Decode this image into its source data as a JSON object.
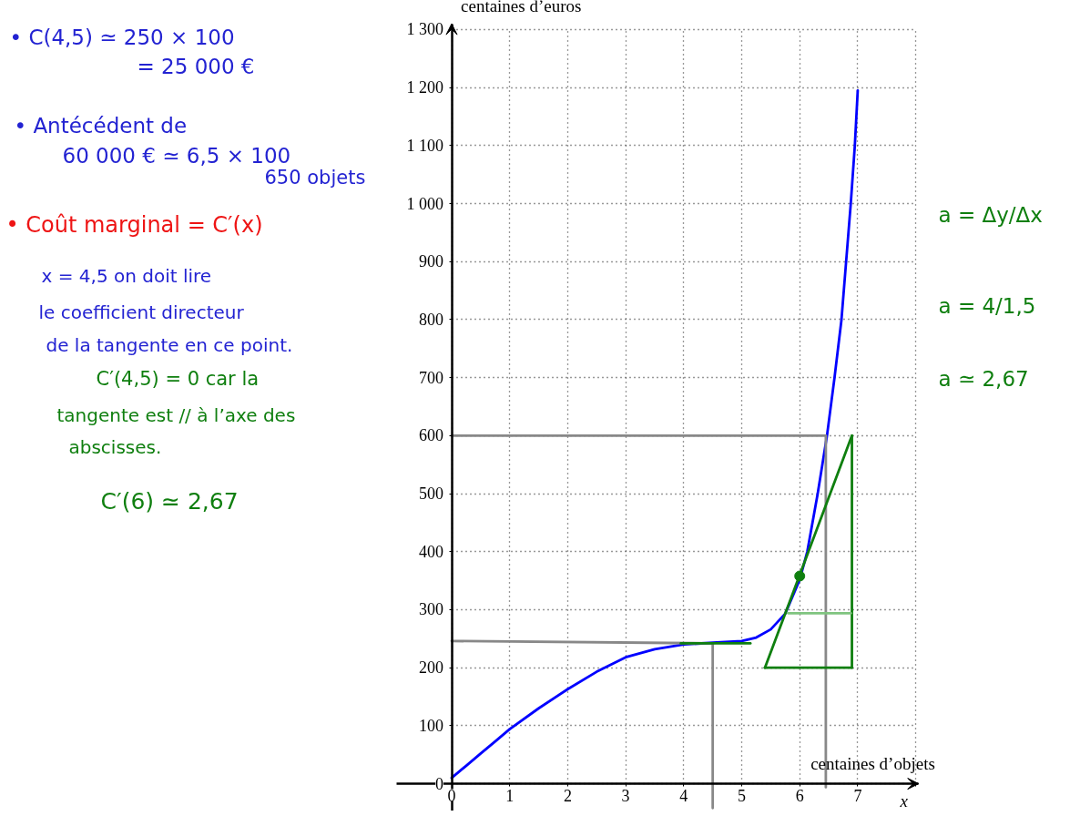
{
  "chart_data": {
    "type": "line",
    "xlabel": "centaines d’objets",
    "ylabel": "centaines d’euros",
    "xlim": [
      -0.95,
      8.05
    ],
    "ylim": [
      -47,
      1310
    ],
    "xticks": [
      0,
      1,
      2,
      3,
      4,
      5,
      6,
      7,
      {
        "value": 8,
        "label": null
      }
    ],
    "yticks": [
      0,
      100,
      200,
      300,
      400,
      500,
      600,
      700,
      800,
      900,
      {
        "value": 1000,
        "label": "1 000"
      },
      {
        "value": 1100,
        "label": "1 100"
      },
      {
        "value": 1200,
        "label": "1 200"
      },
      {
        "value": 1300,
        "label": "1 300"
      }
    ],
    "grid": true,
    "series": [
      {
        "color": "#0000ff",
        "x": [
          0,
          0.25,
          0.5,
          0.75,
          1,
          1.5,
          2,
          2.5,
          3,
          3.5,
          4,
          4.5,
          5,
          5.25,
          5.5,
          5.75,
          6,
          6.13,
          6.31,
          6.47,
          6.6,
          6.72,
          6.8,
          6.88,
          6.95,
          7
        ],
        "values": [
          10,
          31,
          52,
          73,
          94,
          130,
          163,
          193,
          218,
          232,
          240,
          243,
          246,
          252,
          266,
          293,
          352,
          400,
          500,
          600,
          700,
          800,
          900,
          1000,
          1100,
          1195
        ]
      },
      {
        "color": "#888888",
        "x": [
          4.5,
          4.5,
          0
        ],
        "values": [
          -42,
          242,
          246
        ]
      },
      {
        "color": "#888888",
        "x": [
          0,
          6.45,
          6.45
        ],
        "values": [
          600,
          600,
          -6
        ]
      },
      {
        "color": "#0f7f0f",
        "x": [
          3.95,
          5.15
        ],
        "values": [
          242,
          242
        ]
      },
      {
        "color": "#0f7f0f",
        "x": [
          5.4,
          6.9
        ],
        "values": [
          200,
          600
        ]
      },
      {
        "color": "#0f7f0f",
        "x": [
          5.4,
          6.9
        ],
        "values": [
          200,
          200
        ]
      },
      {
        "color": "#0f7f0f",
        "x": [
          6.9,
          6.9
        ],
        "values": [
          200,
          600
        ]
      },
      {
        "color": "#80c480",
        "x": [
          5.8,
          6.88
        ],
        "values": [
          294,
          294
        ]
      },
      {
        "type": "scatter",
        "color": "#0f7f0f",
        "x": [
          6
        ],
        "values": [
          358
        ],
        "marker": "circle"
      }
    ],
    "annotations": [
      "• C(4,5) ≃ 250 × 100",
      "= 25 000 €",
      "• Antécédent de",
      "60 000 €   ≃ 6,5 × 100",
      "650 objets",
      "• Coût marginal = C′(x)",
      "x = 4,5  on doit lire",
      "le coefficient directeur",
      "de la tangente en ce point.",
      "C′(4,5) = 0   car la",
      "tangente est // à l’axe des",
      "abscisses.",
      "C′(6) ≃ 2,67",
      "a = Δy/Δx",
      "a = 4/1,5",
      "a ≃ 2,67",
      "x"
    ]
  }
}
